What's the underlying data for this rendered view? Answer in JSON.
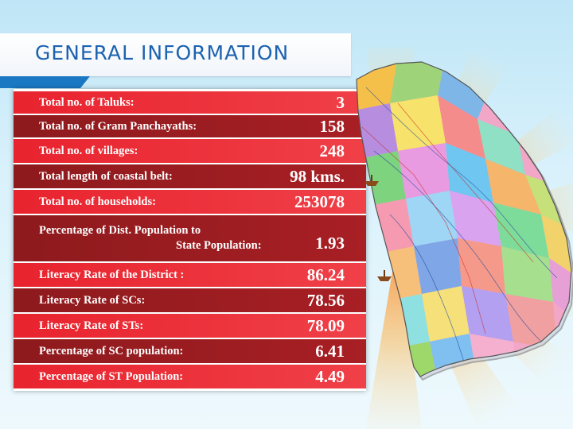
{
  "header": {
    "title": "GENERAL INFORMATION"
  },
  "colors": {
    "red": "#e8232e",
    "dark_red": "#9b1b1f",
    "blue": "#1a78c2",
    "sky": "#bfe6f7"
  },
  "rows": [
    {
      "label": "Total no. of Taluks:",
      "value": "3"
    },
    {
      "label": "Total no. of Gram Panchayaths:",
      "value": "158"
    },
    {
      "label": "Total no. of villages:",
      "value": "248"
    },
    {
      "label": "Total length of coastal belt:",
      "value": "98 kms."
    },
    {
      "label": "Total no. of households:",
      "value": "253078"
    },
    {
      "label": "Percentage of Dist. Population to",
      "label2": "State Population:",
      "value": "1.93"
    },
    {
      "label": "Literacy Rate of the District :",
      "value": "86.24"
    },
    {
      "label": "Literacy Rate of SCs:",
      "value": "78.56"
    },
    {
      "label": "Literacy Rate of STs:",
      "value": "78.09"
    },
    {
      "label": "Percentage of SC population:",
      "value": "6.41"
    },
    {
      "label": "Percentage of ST Population:",
      "value": "4.49"
    }
  ],
  "map": {
    "icon": "district-map"
  }
}
